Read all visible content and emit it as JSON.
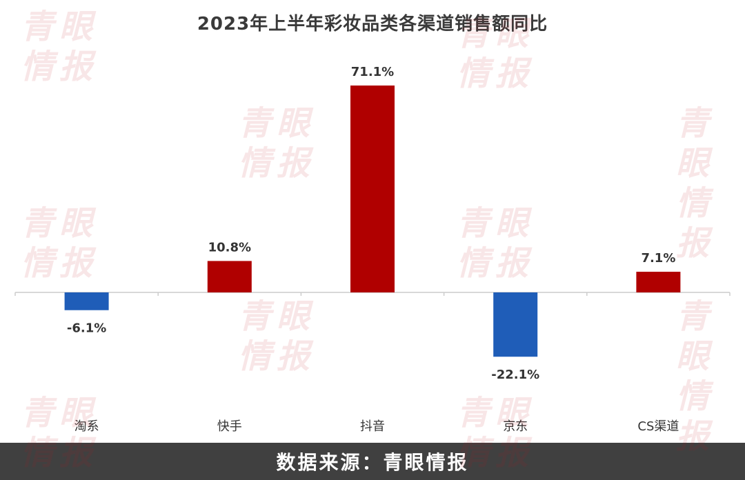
{
  "chart_data": {
    "type": "bar",
    "title": "2023年上半年彩妆品类各渠道销售额同比",
    "categories": [
      "淘系",
      "快手",
      "抖音",
      "京东",
      "CS渠道"
    ],
    "values": [
      -6.1,
      10.8,
      71.1,
      -22.1,
      7.1
    ],
    "data_labels": [
      "-6.1%",
      "10.8%",
      "71.1%",
      "-22.1%",
      "7.1%"
    ],
    "unit": "%",
    "ylim": [
      -40,
      75
    ],
    "grid": false,
    "legend": "none",
    "colors": {
      "positive": "#b00000",
      "negative": "#1f5db8",
      "axis": "#cccccc",
      "text": "#333333"
    }
  },
  "footer": {
    "source": "数据来源：青眼情报"
  },
  "watermark": {
    "text_line1": "青眼",
    "text_line2": "情报"
  }
}
